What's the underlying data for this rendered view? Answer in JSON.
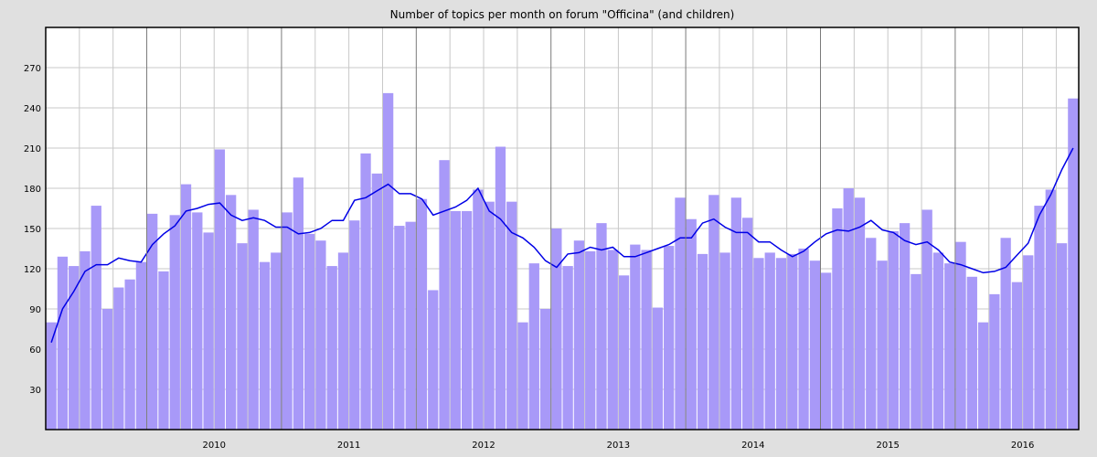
{
  "chart_data": {
    "type": "bar",
    "title": "Number of topics per month on forum \"Officina\" (and children)",
    "xlabel": "",
    "ylabel": "",
    "ylim": [
      0,
      300
    ],
    "y_ticks": [
      30,
      60,
      90,
      120,
      150,
      180,
      210,
      240,
      270
    ],
    "x_ticks": [
      "2010",
      "2011",
      "2012",
      "2013",
      "2014",
      "2015",
      "2016"
    ],
    "start_month": "2009-04",
    "grid": true,
    "colors": {
      "bar": "#a899f8",
      "line": "#0000e6",
      "background": "#ffffff",
      "page": "#e0e0e0"
    },
    "values": [
      80,
      129,
      122,
      133,
      167,
      90,
      106,
      112,
      125,
      161,
      118,
      160,
      183,
      162,
      147,
      209,
      175,
      139,
      164,
      125,
      132,
      162,
      188,
      146,
      141,
      122,
      132,
      156,
      206,
      191,
      251,
      152,
      155,
      172,
      104,
      201,
      163,
      163,
      179,
      170,
      211,
      170,
      80,
      124,
      90,
      150,
      122,
      141,
      133,
      154,
      134,
      115,
      138,
      134,
      91,
      137,
      173,
      157,
      131,
      175,
      132,
      173,
      158,
      128,
      132,
      128,
      131,
      135,
      126,
      117,
      165,
      180,
      173,
      143,
      126,
      148,
      154,
      116,
      164,
      132,
      124,
      140,
      114,
      80,
      101,
      143,
      110,
      130,
      167,
      179,
      139,
      247
    ],
    "moving_average": [
      65,
      90,
      103,
      118,
      123,
      123,
      128,
      126,
      125,
      138,
      146,
      152,
      163,
      165,
      168,
      169,
      160,
      156,
      158,
      156,
      151,
      151,
      146,
      147,
      150,
      156,
      156,
      171,
      173,
      178,
      183,
      176,
      176,
      172,
      160,
      163,
      166,
      171,
      180,
      163,
      157,
      147,
      143,
      136,
      126,
      121,
      131,
      132,
      136,
      134,
      136,
      129,
      129,
      132,
      135,
      138,
      143,
      143,
      154,
      157,
      151,
      147,
      147,
      140,
      140,
      134,
      129,
      133,
      140,
      146,
      149,
      148,
      151,
      156,
      149,
      147,
      141,
      138,
      140,
      134,
      125,
      123,
      120,
      117,
      118,
      121,
      130,
      139,
      160,
      175,
      194,
      210
    ]
  }
}
